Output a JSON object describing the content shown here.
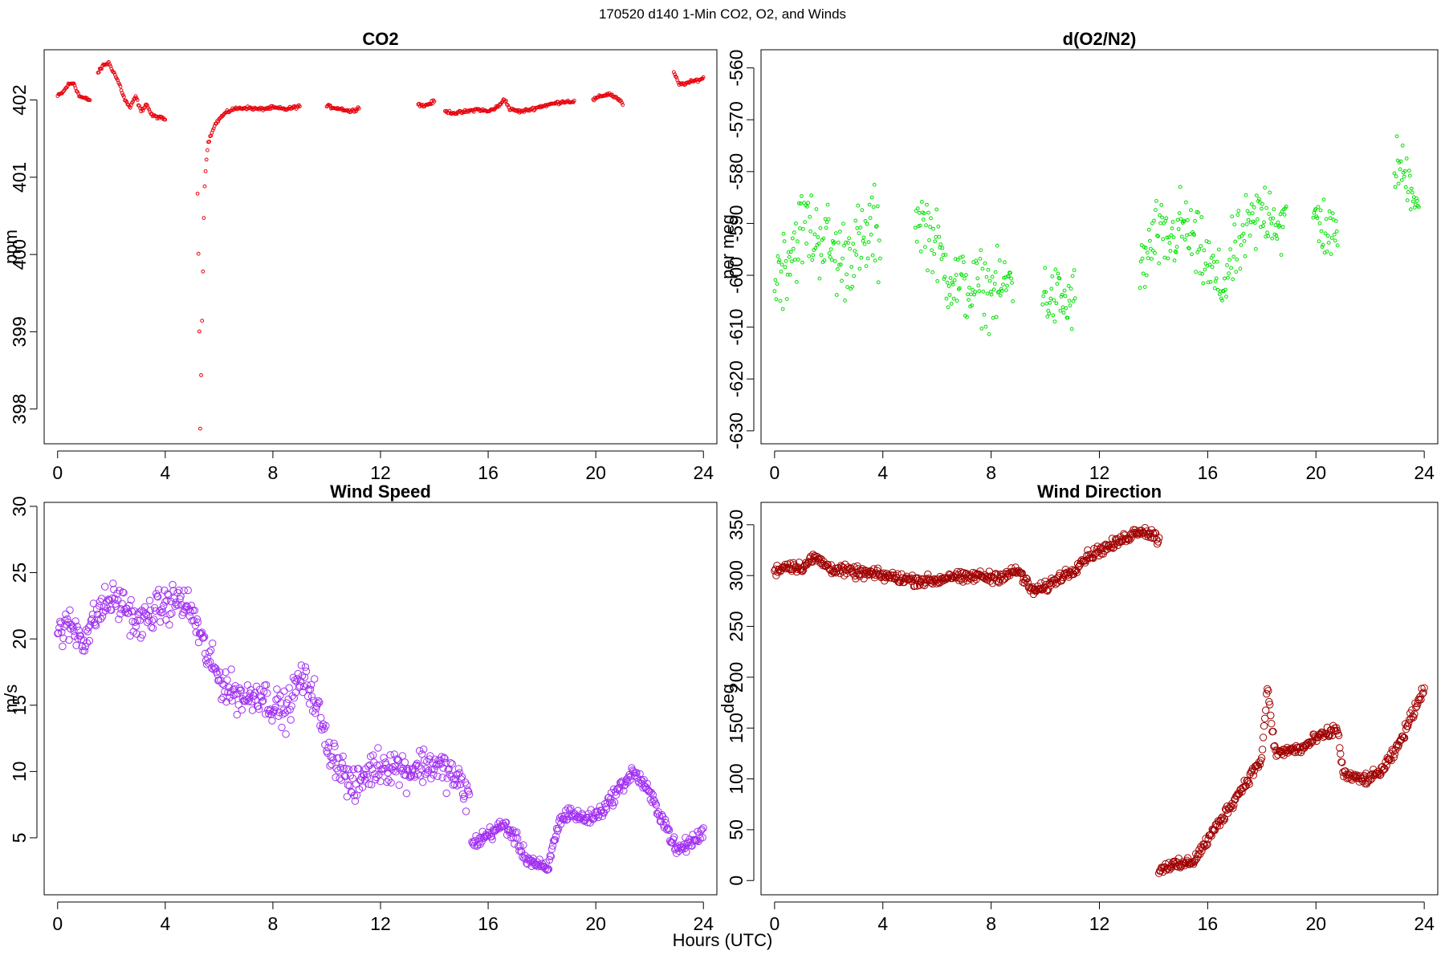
{
  "figure": {
    "title": "170520   d140   1-Min CO2, O2, and Winds",
    "xlabel": "Hours (UTC)"
  },
  "chart_data": [
    {
      "id": "co2",
      "type": "scatter",
      "title": "CO2",
      "ylabel": "ppm",
      "xlabel": "",
      "xlim": [
        -0.5,
        24.5
      ],
      "ylim": [
        397.55,
        402.65
      ],
      "xticks": [
        0,
        4,
        8,
        12,
        16,
        20,
        24
      ],
      "yticks": [
        398,
        399,
        400,
        401,
        402
      ],
      "color": "#e8000b",
      "marker": "small-open-circle",
      "segments": [
        {
          "x": [
            0.0,
            0.2,
            0.4,
            0.6,
            0.8,
            1.0,
            1.2
          ],
          "y": [
            402.05,
            402.1,
            402.2,
            402.22,
            402.05,
            402.02,
            402.0
          ]
        },
        {
          "x": [
            1.5,
            1.7,
            1.9,
            2.1,
            2.3,
            2.5,
            2.7,
            2.9,
            3.1,
            3.3,
            3.5,
            3.7,
            4.0
          ],
          "y": [
            402.35,
            402.45,
            402.48,
            402.35,
            402.2,
            402.0,
            401.9,
            402.05,
            401.85,
            401.95,
            401.8,
            401.78,
            401.75
          ]
        },
        {
          "x": [
            5.2,
            5.25,
            5.3,
            5.35,
            5.4,
            5.45,
            5.5,
            5.55,
            5.6,
            5.7,
            5.8,
            6.0,
            6.2,
            6.5,
            7.0,
            7.5,
            8.0,
            8.5,
            9.0
          ],
          "y": [
            400.8,
            399.6,
            397.75,
            398.8,
            399.8,
            400.8,
            401.1,
            401.3,
            401.45,
            401.55,
            401.65,
            401.75,
            401.82,
            401.88,
            401.9,
            401.88,
            401.9,
            401.88,
            401.92
          ]
        },
        {
          "x": [
            10.0,
            10.3,
            10.6,
            10.9,
            11.2
          ],
          "y": [
            401.92,
            401.9,
            401.88,
            401.85,
            401.9
          ]
        },
        {
          "x": [
            13.4,
            13.6,
            13.8,
            14.0
          ],
          "y": [
            401.95,
            401.92,
            401.95,
            401.98
          ]
        },
        {
          "x": [
            14.4,
            14.8,
            15.2,
            15.6,
            16.0,
            16.4,
            16.6,
            16.8,
            17.2,
            17.6,
            18.0,
            18.4,
            18.8,
            19.2
          ],
          "y": [
            401.85,
            401.83,
            401.85,
            401.88,
            401.85,
            401.92,
            402.02,
            401.88,
            401.85,
            401.88,
            401.92,
            401.95,
            401.98,
            401.98
          ]
        },
        {
          "x": [
            19.9,
            20.2,
            20.5,
            20.8,
            21.0
          ],
          "y": [
            402.0,
            402.05,
            402.08,
            402.02,
            401.95
          ]
        },
        {
          "x": [
            22.9,
            23.1,
            23.4,
            23.7,
            24.0
          ],
          "y": [
            402.35,
            402.2,
            402.22,
            402.25,
            402.28
          ]
        }
      ]
    },
    {
      "id": "o2",
      "type": "scatter",
      "title": "d(O2/N2)",
      "ylabel": "per meg",
      "xlabel": "",
      "xlim": [
        -0.5,
        24.5
      ],
      "ylim": [
        -632.5,
        -556.5
      ],
      "xticks": [
        0,
        4,
        8,
        12,
        16,
        20,
        24
      ],
      "yticks": [
        -630,
        -620,
        -610,
        -600,
        -590,
        -580,
        -570,
        -560
      ],
      "color": "#00e000",
      "marker": "small-open-circle",
      "segments": [
        {
          "x": [
            0.0,
            0.3,
            0.6,
            0.9,
            1.2,
            1.5,
            1.8,
            2.1,
            2.4,
            2.7,
            3.0,
            3.3,
            3.6,
            3.9
          ],
          "y": [
            -600,
            -598,
            -595,
            -592,
            -590,
            -593,
            -592,
            -595,
            -597,
            -596,
            -594,
            -595,
            -590,
            -595
          ],
          "spread": 12
        },
        {
          "x": [
            5.2,
            5.5,
            5.8,
            6.1,
            6.4,
            6.7,
            7.0,
            7.3,
            7.6,
            7.9,
            8.2,
            8.5,
            8.8
          ],
          "y": [
            -588,
            -590,
            -592,
            -596,
            -600,
            -601,
            -602,
            -603,
            -602,
            -603,
            -603,
            -602,
            -600
          ],
          "spread": 10
        },
        {
          "x": [
            9.9,
            10.2,
            10.5,
            10.8,
            11.1
          ],
          "y": [
            -603,
            -605,
            -604,
            -606,
            -604
          ],
          "spread": 9
        },
        {
          "x": [
            13.5,
            13.8,
            14.1,
            14.4,
            14.7,
            15.0,
            15.3,
            15.6,
            15.9,
            16.2,
            16.5,
            16.8,
            17.1,
            17.4,
            17.7,
            18.0,
            18.3,
            18.6,
            18.9
          ],
          "y": [
            -600,
            -596,
            -592,
            -594,
            -593,
            -590,
            -592,
            -595,
            -597,
            -600,
            -603,
            -598,
            -595,
            -592,
            -590,
            -588,
            -587,
            -590,
            -591
          ],
          "spread": 10
        },
        {
          "x": [
            19.9,
            20.2,
            20.5,
            20.8
          ],
          "y": [
            -588,
            -590,
            -592,
            -594
          ],
          "spread": 9
        },
        {
          "x": [
            22.9,
            23.2,
            23.5,
            23.8
          ],
          "y": [
            -578,
            -580,
            -582,
            -586
          ],
          "spread": 8
        }
      ]
    },
    {
      "id": "wind-speed",
      "type": "scatter",
      "title": "Wind Speed",
      "ylabel": "m/s",
      "xlabel": "",
      "xlim": [
        -0.5,
        24.5
      ],
      "ylim": [
        0.7,
        30.3
      ],
      "xticks": [
        0,
        4,
        8,
        12,
        16,
        20,
        24
      ],
      "yticks": [
        5,
        10,
        15,
        20,
        25,
        30
      ],
      "color": "#a030f0",
      "marker": "open-circle",
      "segments": [
        {
          "x": [
            0.0,
            0.5,
            1.0,
            1.5,
            2.0,
            2.5,
            3.0,
            3.5,
            4.0,
            4.5,
            5.0,
            5.5,
            6.0,
            6.5,
            7.0,
            7.5,
            8.0,
            8.5,
            9.0,
            9.5,
            10.0,
            10.5,
            11.0,
            11.5,
            12.0,
            12.5,
            13.0,
            13.5,
            14.0,
            14.5,
            15.0,
            15.3
          ],
          "y": [
            20.5,
            21.0,
            20.0,
            22.0,
            23.0,
            22.5,
            21.0,
            22.0,
            22.5,
            23.0,
            22.0,
            19.0,
            17.0,
            16.0,
            15.5,
            16.0,
            15.0,
            14.5,
            17.0,
            16.0,
            12.0,
            10.5,
            8.5,
            10.0,
            10.5,
            10.5,
            10.0,
            10.5,
            10.5,
            10.0,
            9.0,
            8.0
          ],
          "spread": 2.0
        },
        {
          "x": [
            15.4,
            15.8,
            16.2,
            16.6,
            17.0,
            17.4,
            17.8,
            18.2,
            18.6,
            19.0,
            19.4,
            19.8,
            20.2,
            20.6,
            21.0,
            21.4,
            21.8,
            22.2,
            22.6,
            23.0,
            23.4,
            23.8,
            24.0
          ],
          "y": [
            4.5,
            5.0,
            5.5,
            6.0,
            5.0,
            3.5,
            3.0,
            2.5,
            6.0,
            7.0,
            6.5,
            6.5,
            7.0,
            8.0,
            9.0,
            10.0,
            9.0,
            7.5,
            6.0,
            4.0,
            4.5,
            5.0,
            5.5
          ],
          "spread": 0.8
        }
      ]
    },
    {
      "id": "wind-direction",
      "type": "scatter",
      "title": "Wind Direction",
      "ylabel": "deg",
      "xlabel": "",
      "xlim": [
        -0.5,
        24.5
      ],
      "ylim": [
        -14,
        372
      ],
      "xticks": [
        0,
        4,
        8,
        12,
        16,
        20,
        24
      ],
      "yticks": [
        0,
        50,
        100,
        150,
        200,
        250,
        300,
        350
      ],
      "color": "#a00000",
      "marker": "open-circle",
      "segments": [
        {
          "x": [
            0.0,
            0.5,
            1.0,
            1.5,
            2.0,
            2.5,
            3.0,
            3.5,
            4.0,
            4.5,
            5.0,
            5.5,
            6.0,
            6.5,
            7.0,
            7.5,
            8.0,
            8.5,
            9.0,
            9.5,
            10.0,
            10.5,
            11.0,
            11.5,
            12.0,
            12.5,
            13.0,
            13.5,
            14.0,
            14.2
          ],
          "y": [
            305,
            310,
            308,
            318,
            308,
            305,
            303,
            302,
            300,
            298,
            296,
            295,
            295,
            300,
            297,
            300,
            298,
            300,
            305,
            285,
            288,
            298,
            305,
            318,
            325,
            330,
            338,
            345,
            340,
            335
          ],
          "spread": 8
        },
        {
          "x": [
            14.2,
            14.5,
            15.0,
            15.5,
            16.0,
            16.5,
            17.0,
            17.5,
            18.0,
            18.2,
            18.5,
            19.0,
            19.5,
            20.0,
            20.5,
            20.8,
            21.0,
            21.5,
            22.0,
            22.5,
            23.0,
            23.5,
            24.0
          ],
          "y": [
            10,
            15,
            15,
            20,
            40,
            60,
            80,
            100,
            120,
            190,
            125,
            128,
            130,
            140,
            145,
            150,
            105,
            100,
            100,
            110,
            130,
            160,
            190
          ],
          "spread": 8
        }
      ]
    }
  ]
}
